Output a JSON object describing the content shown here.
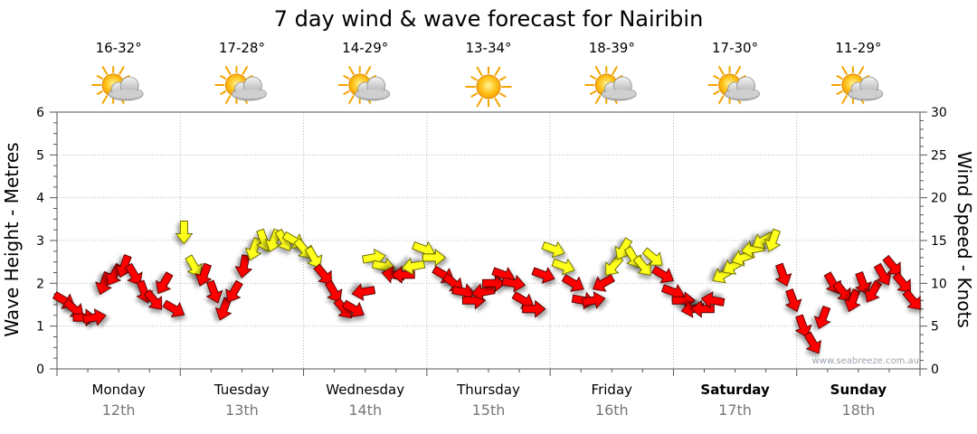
{
  "chart_data": {
    "type": "wind_wave_forecast",
    "title": "7 day wind & wave forecast for Nairibin",
    "ylabel_left": "Wave Height - Metres",
    "ylabel_right": "Wind Speed - Knots",
    "left_axis": {
      "min": 0,
      "max": 6,
      "ticks": [
        "0",
        "1",
        "2",
        "3",
        "4",
        "5",
        "6"
      ]
    },
    "right_axis": {
      "min": 0,
      "max": 30,
      "ticks": [
        "0",
        "5",
        "10",
        "15",
        "20",
        "25",
        "30"
      ]
    },
    "watermark": "www.seabreeze.com.au",
    "days": [
      {
        "name": "Monday",
        "date": "12th",
        "temp": "16-32°",
        "weather": "partly-cloudy",
        "bold": false
      },
      {
        "name": "Tuesday",
        "date": "13th",
        "temp": "17-28°",
        "weather": "partly-cloudy",
        "bold": false
      },
      {
        "name": "Wednesday",
        "date": "14th",
        "temp": "14-29°",
        "weather": "partly-cloudy",
        "bold": false
      },
      {
        "name": "Thursday",
        "date": "15th",
        "temp": "13-34°",
        "weather": "sunny",
        "bold": false
      },
      {
        "name": "Friday",
        "date": "16th",
        "temp": "18-39°",
        "weather": "partly-cloudy",
        "bold": false
      },
      {
        "name": "Saturday",
        "date": "17th",
        "temp": "17-30°",
        "weather": "partly-cloudy",
        "bold": true
      },
      {
        "name": "Sunday",
        "date": "18th",
        "temp": "11-29°",
        "weather": "partly-cloudy",
        "bold": true
      }
    ],
    "wind_series": [
      {
        "knots": 8,
        "dir_deg": 300,
        "color": "red"
      },
      {
        "knots": 7,
        "dir_deg": 310,
        "color": "red"
      },
      {
        "knots": 6,
        "dir_deg": 270,
        "color": "red"
      },
      {
        "knots": 6,
        "dir_deg": 260,
        "color": "red"
      },
      {
        "knots": 10,
        "dir_deg": 20,
        "color": "red"
      },
      {
        "knots": 11,
        "dir_deg": 30,
        "color": "red"
      },
      {
        "knots": 12,
        "dir_deg": 20,
        "color": "red"
      },
      {
        "knots": 11,
        "dir_deg": 330,
        "color": "red"
      },
      {
        "knots": 9,
        "dir_deg": 340,
        "color": "red"
      },
      {
        "knots": 8,
        "dir_deg": 320,
        "color": "red"
      },
      {
        "knots": 10,
        "dir_deg": 30,
        "color": "red"
      },
      {
        "knots": 7,
        "dir_deg": 300,
        "color": "red"
      },
      {
        "knots": 16,
        "dir_deg": 0,
        "color": "yellow"
      },
      {
        "knots": 12,
        "dir_deg": 330,
        "color": "yellow"
      },
      {
        "knots": 11,
        "dir_deg": 20,
        "color": "red"
      },
      {
        "knots": 9,
        "dir_deg": 340,
        "color": "red"
      },
      {
        "knots": 7,
        "dir_deg": 20,
        "color": "red"
      },
      {
        "knots": 9,
        "dir_deg": 30,
        "color": "red"
      },
      {
        "knots": 12,
        "dir_deg": 10,
        "color": "red"
      },
      {
        "knots": 14,
        "dir_deg": 20,
        "color": "yellow"
      },
      {
        "knots": 15,
        "dir_deg": 340,
        "color": "yellow"
      },
      {
        "knots": 15,
        "dir_deg": 20,
        "color": "yellow"
      },
      {
        "knots": 15,
        "dir_deg": 330,
        "color": "yellow"
      },
      {
        "knots": 15,
        "dir_deg": 300,
        "color": "yellow"
      },
      {
        "knots": 14,
        "dir_deg": 320,
        "color": "yellow"
      },
      {
        "knots": 13,
        "dir_deg": 330,
        "color": "yellow"
      },
      {
        "knots": 11,
        "dir_deg": 320,
        "color": "red"
      },
      {
        "knots": 9,
        "dir_deg": 330,
        "color": "red"
      },
      {
        "knots": 7,
        "dir_deg": 320,
        "color": "red"
      },
      {
        "knots": 7,
        "dir_deg": 300,
        "color": "red"
      },
      {
        "knots": 9,
        "dir_deg": 80,
        "color": "red"
      },
      {
        "knots": 13,
        "dir_deg": 260,
        "color": "yellow"
      },
      {
        "knots": 12,
        "dir_deg": 280,
        "color": "yellow"
      },
      {
        "knots": 11,
        "dir_deg": 100,
        "color": "red"
      },
      {
        "knots": 11,
        "dir_deg": 90,
        "color": "red"
      },
      {
        "knots": 12,
        "dir_deg": 80,
        "color": "yellow"
      },
      {
        "knots": 14,
        "dir_deg": 290,
        "color": "yellow"
      },
      {
        "knots": 13,
        "dir_deg": 270,
        "color": "yellow"
      },
      {
        "knots": 11,
        "dir_deg": 300,
        "color": "red"
      },
      {
        "knots": 10,
        "dir_deg": 310,
        "color": "red"
      },
      {
        "knots": 9,
        "dir_deg": 280,
        "color": "red"
      },
      {
        "knots": 8,
        "dir_deg": 270,
        "color": "red"
      },
      {
        "knots": 9,
        "dir_deg": 80,
        "color": "red"
      },
      {
        "knots": 10,
        "dir_deg": 270,
        "color": "red"
      },
      {
        "knots": 11,
        "dir_deg": 290,
        "color": "red"
      },
      {
        "knots": 10,
        "dir_deg": 280,
        "color": "red"
      },
      {
        "knots": 8,
        "dir_deg": 300,
        "color": "red"
      },
      {
        "knots": 7,
        "dir_deg": 270,
        "color": "red"
      },
      {
        "knots": 11,
        "dir_deg": 290,
        "color": "red"
      },
      {
        "knots": 14,
        "dir_deg": 290,
        "color": "yellow"
      },
      {
        "knots": 12,
        "dir_deg": 290,
        "color": "yellow"
      },
      {
        "knots": 10,
        "dir_deg": 300,
        "color": "red"
      },
      {
        "knots": 8,
        "dir_deg": 280,
        "color": "red"
      },
      {
        "knots": 8,
        "dir_deg": 260,
        "color": "red"
      },
      {
        "knots": 10,
        "dir_deg": 60,
        "color": "red"
      },
      {
        "knots": 12,
        "dir_deg": 40,
        "color": "yellow"
      },
      {
        "knots": 14,
        "dir_deg": 30,
        "color": "yellow"
      },
      {
        "knots": 13,
        "dir_deg": 330,
        "color": "yellow"
      },
      {
        "knots": 12,
        "dir_deg": 320,
        "color": "yellow"
      },
      {
        "knots": 13,
        "dir_deg": 310,
        "color": "yellow"
      },
      {
        "knots": 11,
        "dir_deg": 300,
        "color": "red"
      },
      {
        "knots": 9,
        "dir_deg": 290,
        "color": "red"
      },
      {
        "knots": 8,
        "dir_deg": 270,
        "color": "red"
      },
      {
        "knots": 7,
        "dir_deg": 80,
        "color": "red"
      },
      {
        "knots": 7,
        "dir_deg": 90,
        "color": "red"
      },
      {
        "knots": 8,
        "dir_deg": 100,
        "color": "red"
      },
      {
        "knots": 11,
        "dir_deg": 60,
        "color": "yellow"
      },
      {
        "knots": 12,
        "dir_deg": 60,
        "color": "yellow"
      },
      {
        "knots": 13,
        "dir_deg": 70,
        "color": "yellow"
      },
      {
        "knots": 14,
        "dir_deg": 80,
        "color": "yellow"
      },
      {
        "knots": 15,
        "dir_deg": 60,
        "color": "yellow"
      },
      {
        "knots": 15,
        "dir_deg": 20,
        "color": "yellow"
      },
      {
        "knots": 11,
        "dir_deg": 340,
        "color": "red"
      },
      {
        "knots": 8,
        "dir_deg": 340,
        "color": "red"
      },
      {
        "knots": 5,
        "dir_deg": 340,
        "color": "red"
      },
      {
        "knots": 3,
        "dir_deg": 330,
        "color": "red"
      },
      {
        "knots": 6,
        "dir_deg": 20,
        "color": "red"
      },
      {
        "knots": 10,
        "dir_deg": 330,
        "color": "red"
      },
      {
        "knots": 9,
        "dir_deg": 320,
        "color": "red"
      },
      {
        "knots": 8,
        "dir_deg": 20,
        "color": "red"
      },
      {
        "knots": 10,
        "dir_deg": 340,
        "color": "red"
      },
      {
        "knots": 9,
        "dir_deg": 30,
        "color": "red"
      },
      {
        "knots": 11,
        "dir_deg": 330,
        "color": "red"
      },
      {
        "knots": 12,
        "dir_deg": 320,
        "color": "red"
      },
      {
        "knots": 10,
        "dir_deg": 320,
        "color": "red"
      },
      {
        "knots": 8,
        "dir_deg": 320,
        "color": "red"
      }
    ]
  }
}
